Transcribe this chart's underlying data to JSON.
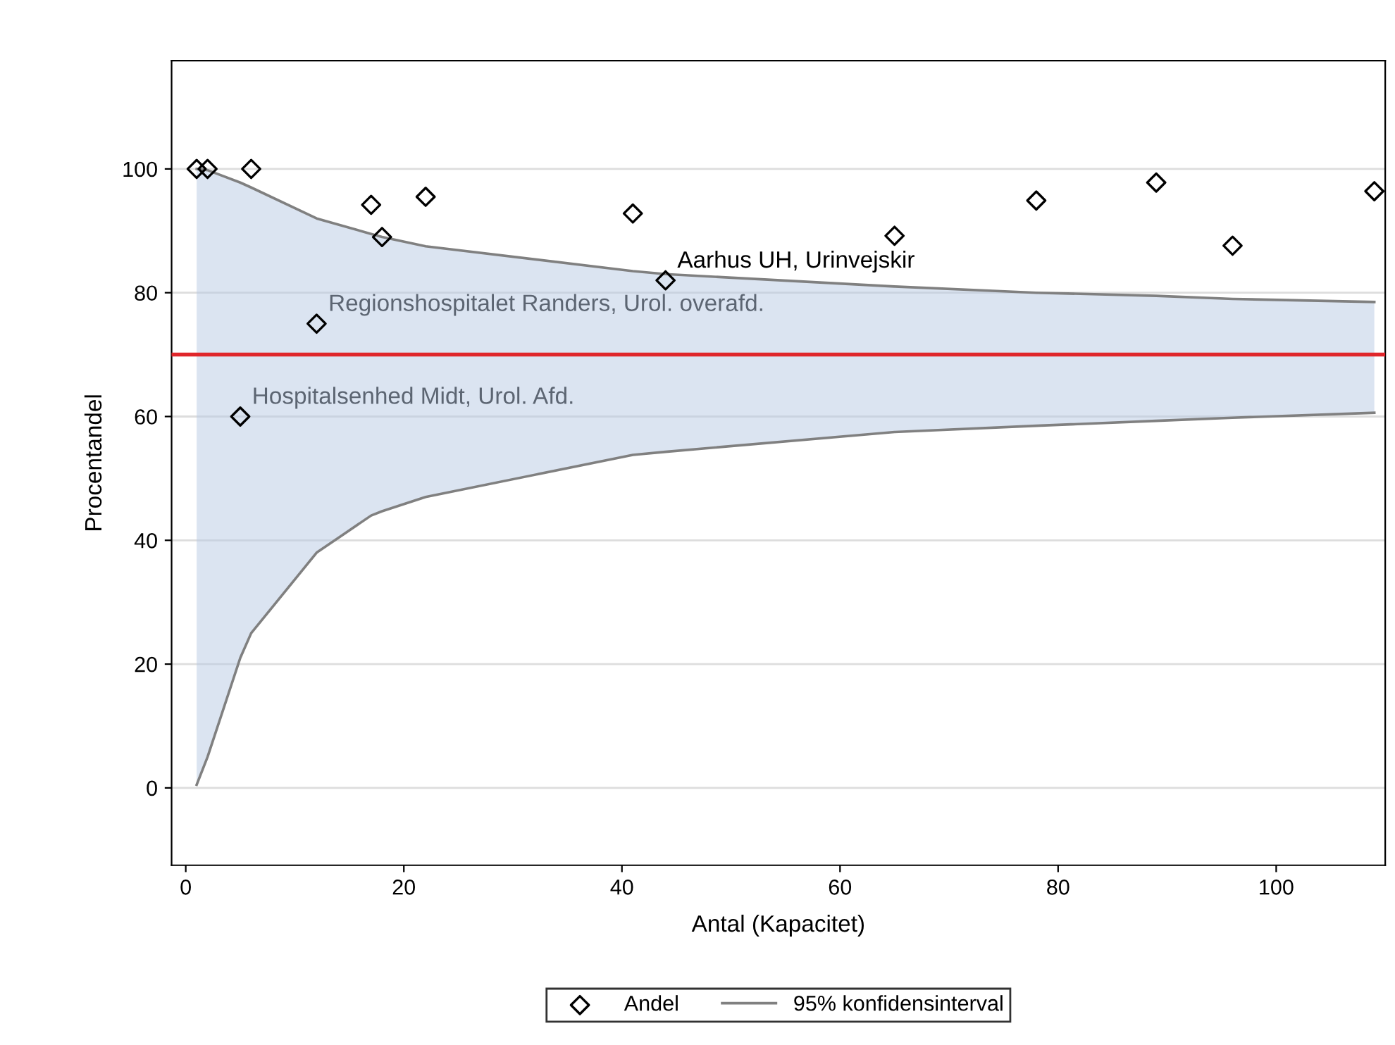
{
  "chart_data": {
    "type": "scatter",
    "xlabel": "Antal (Kapacitet)",
    "ylabel": "Procentandel",
    "xlim": [
      -1.3,
      110
    ],
    "xticks": [
      0,
      20,
      40,
      60,
      80,
      100
    ],
    "ylim": [
      -12.5,
      117.5
    ],
    "yticks": [
      0,
      20,
      40,
      60,
      80,
      100
    ],
    "grid": "y",
    "legend": "bottom",
    "series": [
      {
        "name": "Andel",
        "marker": "diamond",
        "color": "#000000",
        "x": [
          1,
          2,
          5,
          6,
          12,
          17,
          18,
          22,
          41,
          44,
          65,
          78,
          89,
          96,
          109
        ],
        "values": [
          100,
          100,
          60,
          100,
          75,
          94.2,
          89,
          95.5,
          92.8,
          82,
          89.2,
          94.9,
          97.8,
          87.6,
          96.4
        ]
      },
      {
        "name": "95% konfidensinterval",
        "type": "line",
        "color": "#808080",
        "x": [
          1,
          2,
          5,
          6,
          12,
          17,
          18,
          22,
          41,
          44,
          65,
          78,
          89,
          96,
          109
        ],
        "values": [
          100,
          99.8,
          97.8,
          97,
          92,
          89.5,
          89,
          87.5,
          83.5,
          83,
          81,
          80,
          79.5,
          79,
          78.5
        ],
        "lower": [
          0.5,
          5,
          21,
          25,
          38,
          44,
          44.7,
          47,
          53.8,
          54.3,
          57.5,
          58.5,
          59.3,
          59.8,
          60.6
        ],
        "upper": [
          100,
          99.8,
          97.8,
          97,
          92,
          89.5,
          89,
          87.5,
          83.5,
          83,
          81,
          80,
          79.5,
          79,
          78.5
        ]
      },
      {
        "type": "line",
        "color": "#808080",
        "x": [
          1,
          2,
          5,
          6,
          12,
          17,
          18,
          22,
          41,
          44,
          65,
          78,
          89,
          96,
          109
        ],
        "values": [
          0.5,
          5,
          21,
          25,
          38,
          44,
          44.7,
          47,
          53.8,
          54.3,
          57.5,
          58.5,
          59.3,
          59.8,
          60.6
        ]
      }
    ],
    "ref_lines": [
      {
        "axis": "y",
        "value": 70,
        "color": "#e0262b"
      }
    ],
    "annotations": [
      {
        "text": "Aarhus UH, Urinvejskir",
        "x": 44,
        "y": 82
      },
      {
        "text": "Regionshospitalet Randers, Urol. overafd.",
        "x": 12,
        "y": 75
      },
      {
        "text": "Hospitalsenhed Midt, Urol. Afd.",
        "x": 5,
        "y": 60
      }
    ]
  }
}
